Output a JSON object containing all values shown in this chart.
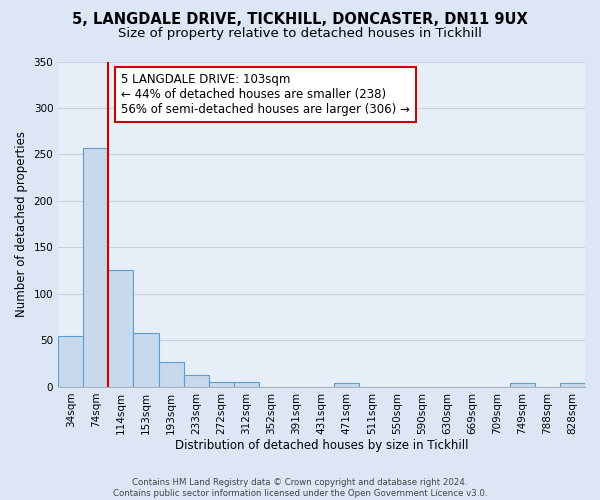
{
  "title": "5, LANGDALE DRIVE, TICKHILL, DONCASTER, DN11 9UX",
  "subtitle": "Size of property relative to detached houses in Tickhill",
  "xlabel": "Distribution of detached houses by size in Tickhill",
  "ylabel": "Number of detached properties",
  "bar_labels": [
    "34sqm",
    "74sqm",
    "114sqm",
    "153sqm",
    "193sqm",
    "233sqm",
    "272sqm",
    "312sqm",
    "352sqm",
    "391sqm",
    "431sqm",
    "471sqm",
    "511sqm",
    "550sqm",
    "590sqm",
    "630sqm",
    "669sqm",
    "709sqm",
    "749sqm",
    "788sqm",
    "828sqm"
  ],
  "bar_values": [
    55,
    257,
    126,
    58,
    27,
    13,
    5,
    5,
    0,
    0,
    0,
    4,
    0,
    0,
    0,
    0,
    0,
    0,
    4,
    0,
    4
  ],
  "bar_color": "#c8d9ec",
  "bar_edge_color": "#5a9fd4",
  "bar_edge_width": 0.8,
  "vline_x_index": 1.5,
  "vline_color": "#cc0000",
  "ylim": [
    0,
    350
  ],
  "yticks": [
    0,
    50,
    100,
    150,
    200,
    250,
    300,
    350
  ],
  "annotation_text": "5 LANGDALE DRIVE: 103sqm\n← 44% of detached houses are smaller (238)\n56% of semi-detached houses are larger (306) →",
  "annotation_box_color": "#ffffff",
  "annotation_border_color": "#cc0000",
  "footer_line1": "Contains HM Land Registry data © Crown copyright and database right 2024.",
  "footer_line2": "Contains public sector information licensed under the Open Government Licence v3.0.",
  "bg_color": "#dce6f5",
  "plot_bg_color": "#e8eef8",
  "grid_color": "#c8d0e0",
  "title_fontsize": 10.5,
  "subtitle_fontsize": 9.5,
  "tick_fontsize": 7.5,
  "ylabel_fontsize": 8.5,
  "xlabel_fontsize": 8.5,
  "annotation_fontsize": 8.5
}
